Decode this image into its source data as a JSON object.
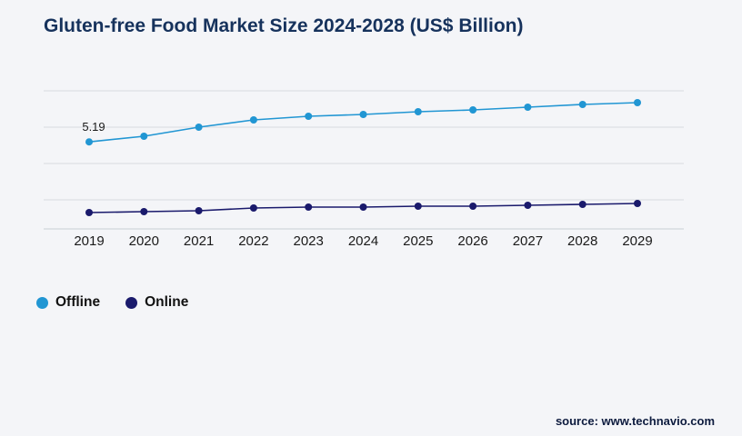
{
  "title": "Gluten-free Food Market Size 2024-2028 (US$ Billion)",
  "source": "source: www.technavio.com",
  "legend": [
    {
      "label": "Offline",
      "color": "#2196d3"
    },
    {
      "label": "Online",
      "color": "#1a1a6c"
    }
  ],
  "colors": {
    "background": "#f4f5f8",
    "gridline": "#d9dce1",
    "axis": "#c9ced4",
    "title": "#16325c",
    "tick_label": "#1a1a1a",
    "annotation": "#1a1a1a",
    "source": "#0d1b3e"
  },
  "chart_data": {
    "type": "line",
    "title": "Gluten-free Food Market Size 2024-2028 (US$ Billion)",
    "categories": [
      "2019",
      "2020",
      "2021",
      "2022",
      "2023",
      "2024",
      "2025",
      "2026",
      "2027",
      "2028",
      "2029"
    ],
    "series": [
      {
        "name": "Offline",
        "color": "#2196d3",
        "values": [
          5.19,
          5.5,
          6.0,
          6.4,
          6.6,
          6.7,
          6.85,
          6.95,
          7.1,
          7.25,
          7.35
        ]
      },
      {
        "name": "Online",
        "color": "#1a1a6c",
        "values": [
          1.3,
          1.35,
          1.4,
          1.55,
          1.6,
          1.6,
          1.65,
          1.65,
          1.7,
          1.75,
          1.8
        ]
      }
    ],
    "annotation": {
      "series": "Offline",
      "category": "2019",
      "text": "5.19"
    },
    "xlabel": "",
    "ylabel": "",
    "ylim": [
      0.4,
      8.4
    ],
    "gridline_values": [
      2,
      4,
      6,
      8
    ],
    "grid": true,
    "legend_position": "bottom-left"
  }
}
